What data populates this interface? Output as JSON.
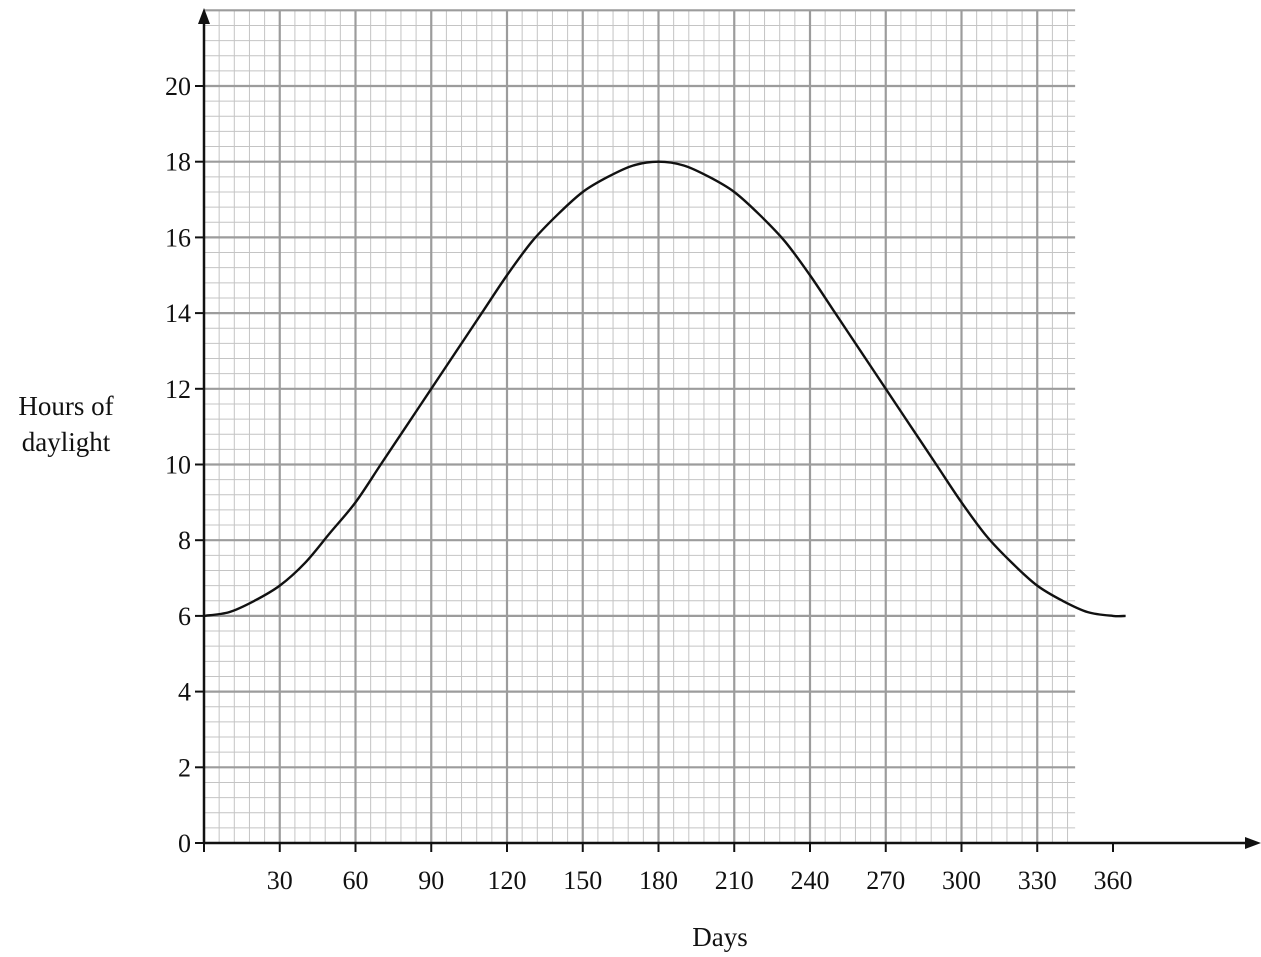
{
  "chart_data": {
    "type": "line",
    "title": "",
    "xlabel": "Days",
    "ylabel_lines": [
      "Hours of",
      "daylight"
    ],
    "xlim": [
      0,
      345
    ],
    "ylim": [
      0,
      22
    ],
    "x_ticks": [
      30,
      60,
      90,
      120,
      150,
      180,
      210,
      240,
      270,
      300,
      330,
      360
    ],
    "y_ticks": [
      0,
      2,
      4,
      6,
      8,
      10,
      12,
      14,
      16,
      18,
      20
    ],
    "grid": true,
    "minor_grid_step_x": 6,
    "minor_grid_step_y": 0.4,
    "series": [
      {
        "x": [
          0,
          10,
          20,
          30,
          40,
          50,
          60,
          70,
          80,
          90,
          100,
          110,
          120,
          130,
          140,
          150,
          160,
          170,
          180,
          190,
          200,
          210,
          220,
          230,
          240,
          250,
          260,
          270,
          280,
          290,
          300,
          310,
          320,
          330,
          340,
          350,
          360,
          365
        ],
        "y": [
          6.0,
          6.1,
          6.4,
          6.8,
          7.4,
          8.2,
          9.0,
          10.0,
          11.0,
          12.0,
          13.0,
          14.0,
          15.0,
          15.9,
          16.6,
          17.2,
          17.6,
          17.9,
          18.0,
          17.9,
          17.6,
          17.2,
          16.6,
          15.9,
          15.0,
          14.0,
          13.0,
          12.0,
          11.0,
          10.0,
          9.0,
          8.1,
          7.4,
          6.8,
          6.4,
          6.1,
          6.0,
          6.0
        ],
        "color": "#111111"
      }
    ]
  }
}
